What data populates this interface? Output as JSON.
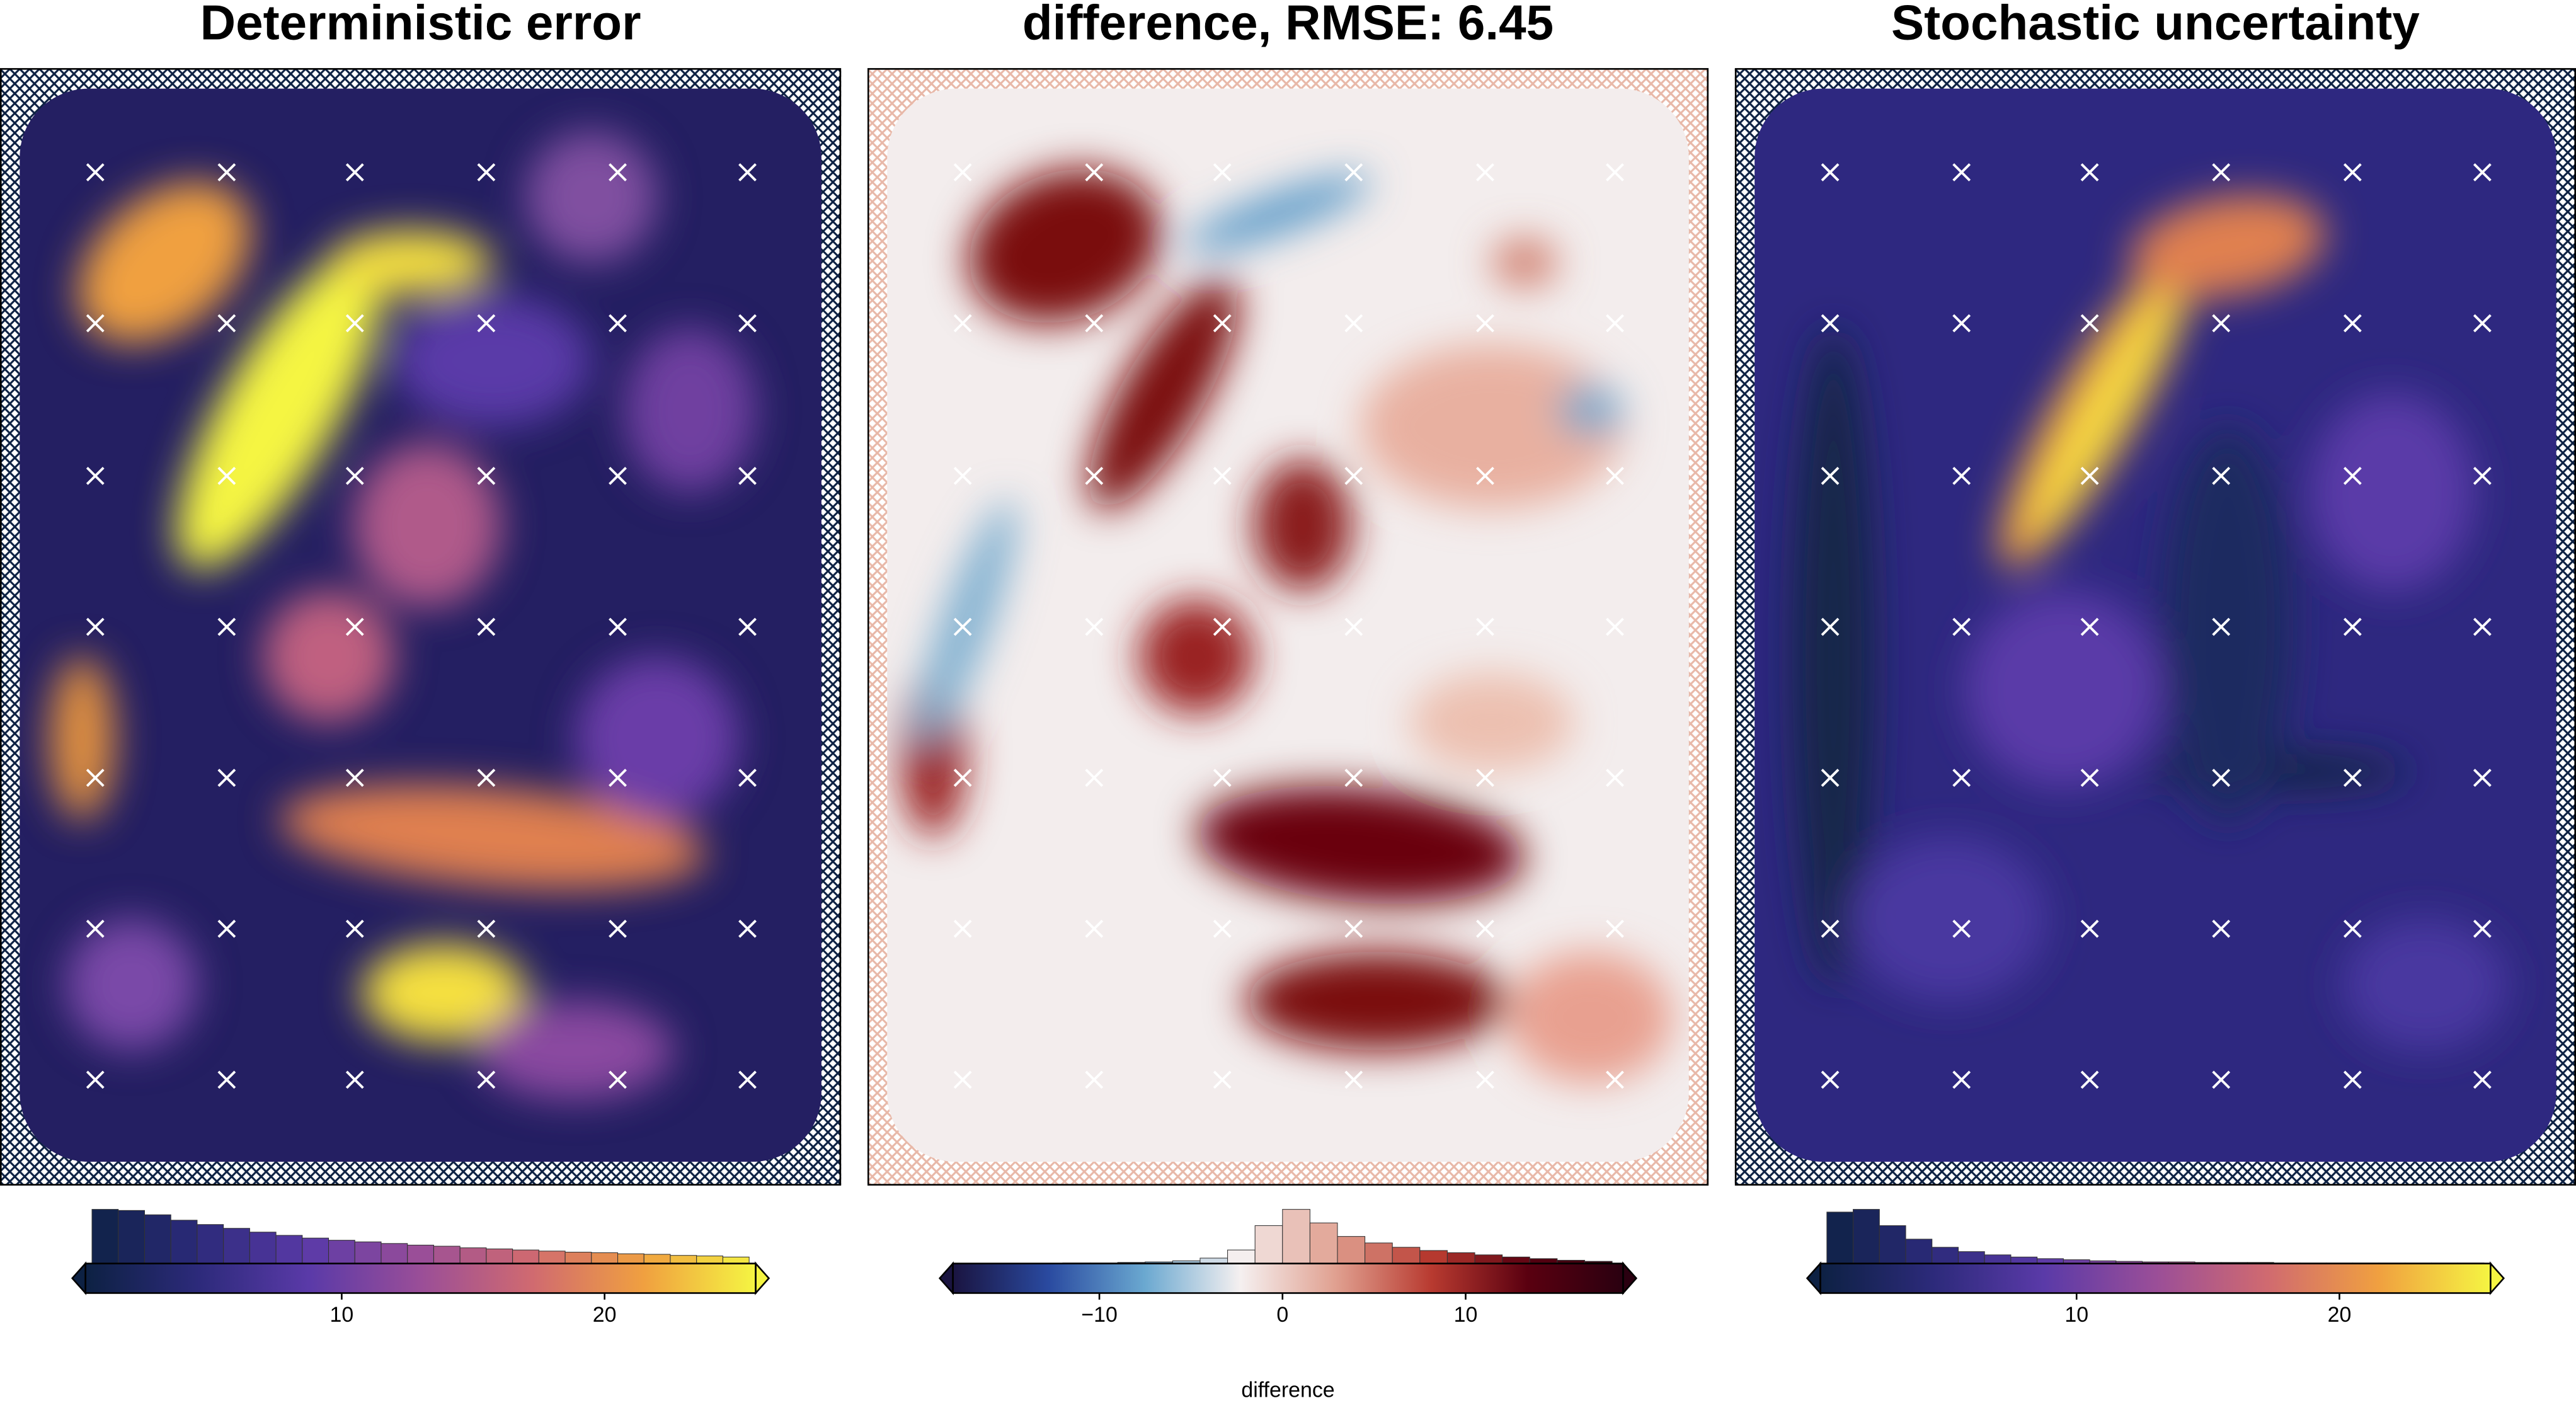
{
  "chart_data": [
    {
      "type": "heatmap",
      "title": "Deterministic error",
      "colormap": [
        "#0d2143",
        "#2c2a7a",
        "#5a3aa8",
        "#9a4e98",
        "#d06a70",
        "#f0a040",
        "#f5f542"
      ],
      "hatch_color": "#0d2143",
      "colorbar": {
        "xlim": [
          0.25,
          25.75
        ],
        "xticks": [
          10,
          20
        ],
        "extend": "both"
      },
      "histogram": {
        "bins": [
          0.5,
          1.5,
          2.5,
          3.5,
          4.5,
          5.5,
          6.5,
          7.5,
          8.5,
          9.5,
          10.5,
          11.5,
          12.5,
          13.5,
          14.5,
          15.5,
          16.5,
          17.5,
          18.5,
          19.5,
          20.5,
          21.5,
          22.5,
          23.5,
          24.5,
          25.5
        ],
        "values": [
          100,
          98,
          90,
          80,
          72,
          65,
          58,
          52,
          47,
          43,
          40,
          37,
          34,
          32,
          29,
          27,
          25,
          23,
          21,
          20,
          18,
          17,
          15,
          14,
          12
        ]
      }
    },
    {
      "type": "heatmap",
      "title": "difference, RMSE: 6.45",
      "colormap": [
        "#1a1440",
        "#2a4aa0",
        "#6aa8d0",
        "#f5f0f0",
        "#e0a090",
        "#b83a30",
        "#5a0010",
        "#2a0010"
      ],
      "hatch_color": "#e8b8a8",
      "colorbar": {
        "xlim": [
          -18,
          18.6
        ],
        "xticks": [
          {
            "value": -10,
            "label": "−10"
          },
          0,
          10
        ],
        "extend": "both",
        "xlabel": "difference"
      },
      "histogram": {
        "bins": [
          -18,
          -16.5,
          -15,
          -13.5,
          -12,
          -10.5,
          -9,
          -7.5,
          -6,
          -4.5,
          -3,
          -1.5,
          0,
          1.5,
          3,
          4.5,
          6,
          7.5,
          9,
          10.5,
          12,
          13.5,
          15,
          16.5,
          18
        ],
        "values": [
          0,
          0,
          0,
          0,
          1,
          1,
          2,
          3,
          5,
          10,
          25,
          70,
          100,
          75,
          50,
          38,
          30,
          24,
          20,
          16,
          12,
          9,
          6,
          4
        ]
      }
    },
    {
      "type": "heatmap",
      "title": "Stochastic uncertainty",
      "colormap": [
        "#0d2143",
        "#2c2a7a",
        "#5a3aa8",
        "#9a4e98",
        "#d06a70",
        "#f0a040",
        "#f5f542"
      ],
      "hatch_color": "#0d2143",
      "colorbar": {
        "xlim": [
          0.25,
          25.75
        ],
        "xticks": [
          10,
          20
        ],
        "extend": "both"
      },
      "histogram": {
        "bins": [
          0.5,
          1.5,
          2.5,
          3.5,
          4.5,
          5.5,
          6.5,
          7.5,
          8.5,
          9.5,
          10.5,
          11.5,
          12.5,
          13.5,
          14.5,
          15.5,
          16.5,
          17.5,
          18.5,
          19.5,
          20.5,
          21.5,
          22.5,
          23.5,
          24.5,
          25.5
        ],
        "values": [
          95,
          100,
          70,
          45,
          30,
          22,
          16,
          12,
          9,
          7,
          5,
          4,
          3,
          3,
          2,
          2,
          2,
          1,
          1,
          1,
          1,
          1,
          1,
          1,
          1
        ]
      }
    }
  ]
}
